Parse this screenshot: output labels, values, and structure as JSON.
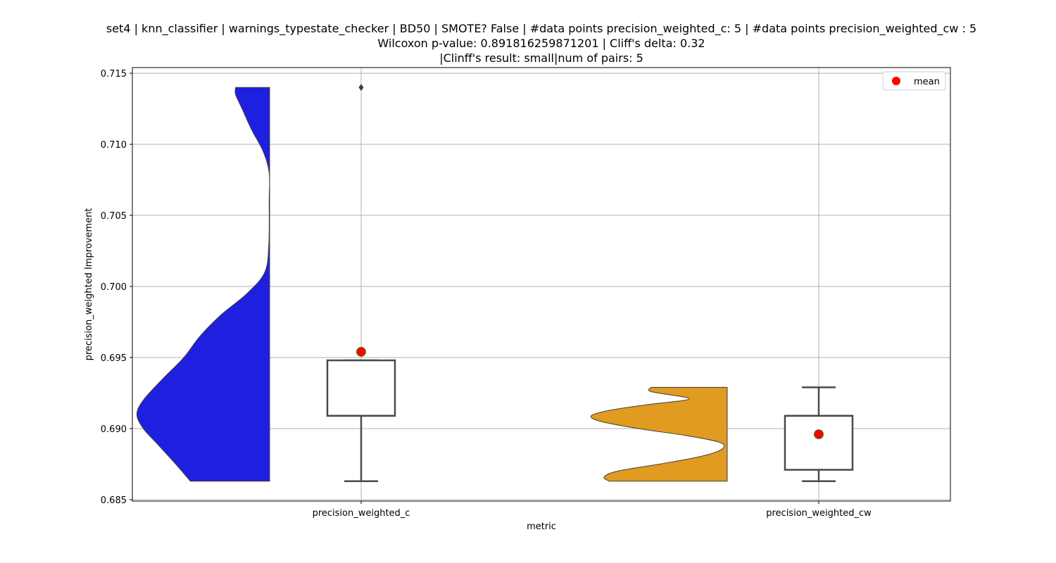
{
  "chart_data": {
    "type": "violin+box",
    "title_lines": [
      "set4 | knn_classifier | warnings_typestate_checker | BD50 | SMOTE? False | #data points precision_weighted_c: 5 | #data points precision_weighted_cw : 5",
      "Wilcoxon p-value: 0.891816259871201 | Cliff's delta: 0.32",
      "|Clinff's result: small|num of pairs: 5"
    ],
    "xlabel": "metric",
    "ylabel": "precision_weighted Improvement",
    "ylim": [
      0.6849,
      0.7154
    ],
    "yticks": [
      "0.685",
      "0.690",
      "0.695",
      "0.700",
      "0.705",
      "0.710",
      "0.715"
    ],
    "grid": true,
    "legend": {
      "position": "top-right",
      "entries": [
        {
          "label": "mean",
          "color": "#ff0000"
        }
      ]
    },
    "categories": [
      "precision_weighted_c",
      "precision_weighted_cw"
    ],
    "series": [
      {
        "category": "precision_weighted_c",
        "violin_color": "#1f1fe0",
        "violin_side": "left",
        "density_profile": [
          [
            0.6863,
            0.49
          ],
          [
            0.6875,
            0.58
          ],
          [
            0.689,
            0.7
          ],
          [
            0.69,
            0.78
          ],
          [
            0.691,
            0.82
          ],
          [
            0.692,
            0.78
          ],
          [
            0.6935,
            0.66
          ],
          [
            0.695,
            0.53
          ],
          [
            0.6965,
            0.43
          ],
          [
            0.698,
            0.3
          ],
          [
            0.6995,
            0.14
          ],
          [
            0.701,
            0.03
          ],
          [
            0.703,
            0.005
          ],
          [
            0.706,
            0.003
          ],
          [
            0.708,
            0.003
          ],
          [
            0.7095,
            0.04
          ],
          [
            0.711,
            0.11
          ],
          [
            0.7125,
            0.17
          ],
          [
            0.7135,
            0.21
          ],
          [
            0.714,
            0.21
          ]
        ],
        "min": 0.6863,
        "q1": 0.6909,
        "median": 0.6909,
        "q3": 0.6948,
        "max": 0.6948,
        "outliers": [
          0.714
        ],
        "mean": 0.6954
      },
      {
        "category": "precision_weighted_cw",
        "violin_color": "#e09b20",
        "violin_side": "left",
        "density_profile": [
          [
            0.6863,
            0.73
          ],
          [
            0.6866,
            0.76
          ],
          [
            0.687,
            0.68
          ],
          [
            0.6875,
            0.42
          ],
          [
            0.688,
            0.18
          ],
          [
            0.6885,
            0.04
          ],
          [
            0.689,
            0.04
          ],
          [
            0.6895,
            0.25
          ],
          [
            0.69,
            0.55
          ],
          [
            0.6905,
            0.78
          ],
          [
            0.6909,
            0.84
          ],
          [
            0.6913,
            0.72
          ],
          [
            0.6917,
            0.48
          ],
          [
            0.692,
            0.26
          ],
          [
            0.6922,
            0.26
          ],
          [
            0.6926,
            0.47
          ],
          [
            0.6929,
            0.47
          ]
        ],
        "min": 0.6863,
        "q1": 0.6871,
        "median": 0.6909,
        "q3": 0.6909,
        "max": 0.6929,
        "outliers": [],
        "mean": 0.6896
      }
    ]
  }
}
